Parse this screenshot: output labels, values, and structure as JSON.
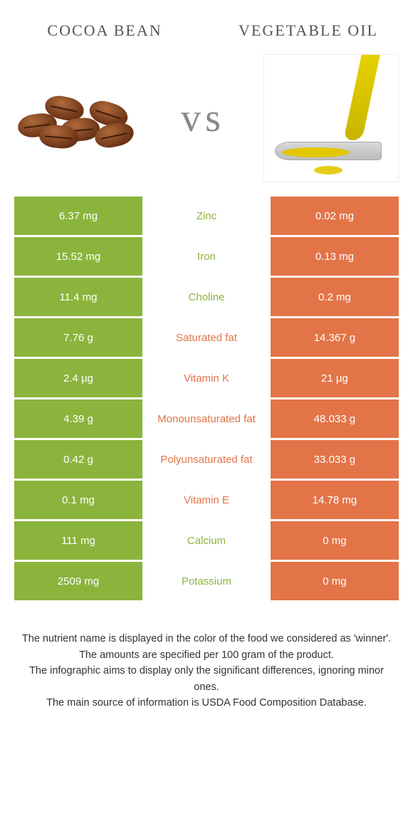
{
  "colors": {
    "left": "#8bb43c",
    "right": "#e37448",
    "nutrient_left": "#8bb43c",
    "nutrient_right": "#e37448"
  },
  "header": {
    "left_title": "Cocoa bean",
    "right_title": "Vegetable oil",
    "vs": "vs"
  },
  "rows": [
    {
      "left": "6.37 mg",
      "name": "Zinc",
      "right": "0.02 mg",
      "winner": "left"
    },
    {
      "left": "15.52 mg",
      "name": "Iron",
      "right": "0.13 mg",
      "winner": "left"
    },
    {
      "left": "11.4 mg",
      "name": "Choline",
      "right": "0.2 mg",
      "winner": "left"
    },
    {
      "left": "7.76 g",
      "name": "Saturated fat",
      "right": "14.367 g",
      "winner": "right"
    },
    {
      "left": "2.4 µg",
      "name": "Vitamin K",
      "right": "21 µg",
      "winner": "right"
    },
    {
      "left": "4.39 g",
      "name": "Monounsaturated fat",
      "right": "48.033 g",
      "winner": "right"
    },
    {
      "left": "0.42 g",
      "name": "Polyunsaturated fat",
      "right": "33.033 g",
      "winner": "right"
    },
    {
      "left": "0.1 mg",
      "name": "Vitamin E",
      "right": "14.78 mg",
      "winner": "right"
    },
    {
      "left": "111 mg",
      "name": "Calcium",
      "right": "0 mg",
      "winner": "left"
    },
    {
      "left": "2509 mg",
      "name": "Potassium",
      "right": "0 mg",
      "winner": "left"
    }
  ],
  "footer": {
    "l1": "The nutrient name is displayed in the color of the food we considered as 'winner'.",
    "l2": "The amounts are specified per 100 gram of the product.",
    "l3": "The infographic aims to display only the significant differences, ignoring minor ones.",
    "l4": "The main source of information is USDA Food Composition Database."
  }
}
